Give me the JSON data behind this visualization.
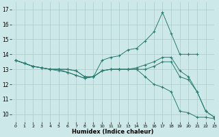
{
  "title": "",
  "xlabel": "Humidex (Indice chaleur)",
  "xlim": [
    -0.5,
    23
  ],
  "ylim": [
    9.5,
    17.5
  ],
  "yticks": [
    10,
    11,
    12,
    13,
    14,
    15,
    16,
    17
  ],
  "xticks": [
    0,
    1,
    2,
    3,
    4,
    5,
    6,
    7,
    8,
    9,
    10,
    11,
    12,
    13,
    14,
    15,
    16,
    17,
    18,
    19,
    20,
    21,
    22,
    23
  ],
  "bg_color": "#cce8e8",
  "line_color": "#2a7a70",
  "grid_color": "#aacccc",
  "line1_x": [
    0,
    1,
    2,
    3,
    4,
    5,
    6,
    7,
    8,
    9,
    10,
    11,
    12,
    13,
    14,
    15,
    16,
    17,
    18,
    19,
    20,
    21
  ],
  "line1_y": [
    13.6,
    13.4,
    13.2,
    13.1,
    13.0,
    13.0,
    13.0,
    12.9,
    12.5,
    12.5,
    13.6,
    13.8,
    13.9,
    14.3,
    14.4,
    14.9,
    15.5,
    16.8,
    15.4,
    14.0,
    14.0,
    14.0
  ],
  "line2_x": [
    0,
    1,
    2,
    3,
    4,
    5,
    6,
    7,
    8,
    9,
    10,
    11,
    12,
    13,
    14,
    15,
    16,
    17,
    18,
    19,
    20,
    21,
    22,
    23
  ],
  "line2_y": [
    13.6,
    13.4,
    13.2,
    13.1,
    13.0,
    13.0,
    13.0,
    12.9,
    12.5,
    12.5,
    12.9,
    13.0,
    13.0,
    13.0,
    13.1,
    13.3,
    13.5,
    13.8,
    13.8,
    12.9,
    12.5,
    11.5,
    10.2,
    9.8
  ],
  "line3_x": [
    0,
    1,
    2,
    3,
    4,
    5,
    6,
    7,
    8,
    9,
    10,
    11,
    12,
    13,
    14,
    15,
    16,
    17,
    18,
    19,
    20,
    21,
    22,
    23
  ],
  "line3_y": [
    13.6,
    13.4,
    13.2,
    13.1,
    13.0,
    13.0,
    12.8,
    12.6,
    12.4,
    12.5,
    12.9,
    13.0,
    13.0,
    13.0,
    13.0,
    13.0,
    13.2,
    13.5,
    13.5,
    12.5,
    12.3,
    11.5,
    10.2,
    9.8
  ],
  "line4_x": [
    0,
    1,
    2,
    3,
    4,
    5,
    6,
    7,
    8,
    9,
    10,
    11,
    12,
    13,
    14,
    15,
    16,
    17,
    18,
    19,
    20,
    21,
    22,
    23
  ],
  "line4_y": [
    13.6,
    13.4,
    13.2,
    13.1,
    13.0,
    12.9,
    12.8,
    12.6,
    12.4,
    12.5,
    12.9,
    13.0,
    13.0,
    13.0,
    13.0,
    12.5,
    12.0,
    11.8,
    11.5,
    10.2,
    10.1,
    9.8,
    9.8,
    9.7
  ]
}
